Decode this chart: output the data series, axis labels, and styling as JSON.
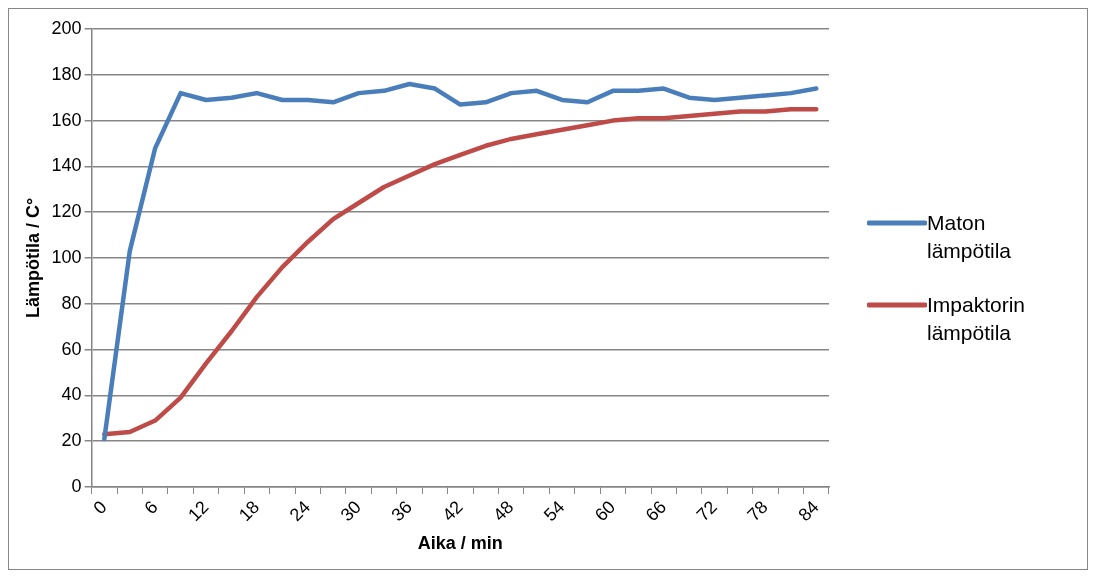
{
  "chart_data": {
    "type": "line",
    "xlabel": "Aika / min",
    "ylabel": "Lämpötila / C°",
    "categories": [
      "0",
      null,
      "6",
      null,
      "12",
      null,
      "18",
      null,
      "24",
      null,
      "30",
      null,
      "36",
      null,
      "42",
      null,
      "48",
      null,
      "54",
      null,
      "60",
      null,
      "66",
      null,
      "72",
      null,
      "78",
      null,
      "84"
    ],
    "series": [
      {
        "name": "Maton lämpötila",
        "color": "#4a7ebb",
        "values": [
          21,
          103,
          148,
          172,
          169,
          170,
          172,
          169,
          169,
          168,
          172,
          173,
          176,
          174,
          167,
          168,
          172,
          173,
          169,
          168,
          173,
          173,
          174,
          170,
          169,
          170,
          171,
          172,
          174
        ]
      },
      {
        "name": "Impaktorin lämpötila",
        "color": "#be4b48",
        "values": [
          23,
          24,
          29,
          39,
          54,
          68,
          83,
          96,
          107,
          117,
          124,
          131,
          136,
          141,
          145,
          149,
          152,
          154,
          156,
          158,
          160,
          161,
          161,
          162,
          163,
          164,
          164,
          165,
          165
        ]
      }
    ],
    "ylim": [
      0,
      200
    ],
    "yticks": [
      0,
      20,
      40,
      60,
      80,
      100,
      120,
      140,
      160,
      180,
      200
    ],
    "grid": "y",
    "legend": "right",
    "marker": "none",
    "line_style": "solid"
  }
}
